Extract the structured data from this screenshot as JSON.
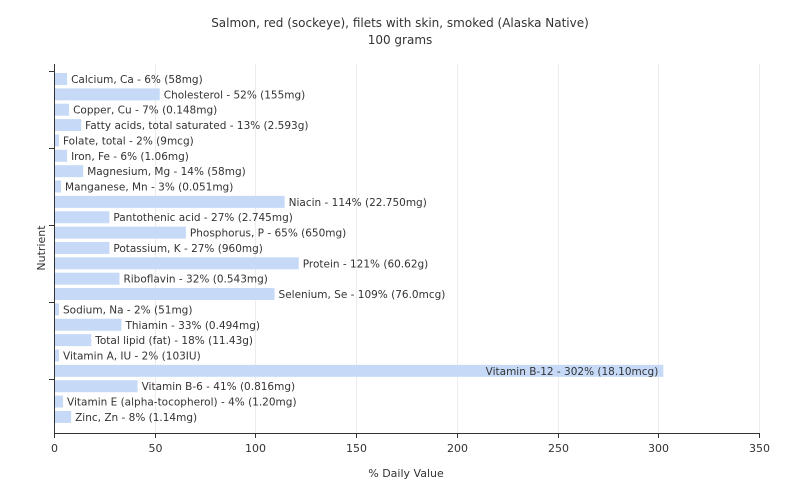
{
  "chart_data": {
    "type": "bar",
    "orientation": "horizontal",
    "title": "Salmon, red (sockeye), filets with skin, smoked (Alaska Native)",
    "subtitle": "100 grams",
    "xlabel": "% Daily Value",
    "ylabel": "Nutrient",
    "xlim": [
      0,
      350
    ],
    "xticks": [
      0,
      50,
      100,
      150,
      200,
      250,
      300,
      350
    ],
    "grid": true,
    "bar_color": "#c6daf8",
    "categories": [
      "Calcium, Ca",
      "Cholesterol",
      "Copper, Cu",
      "Fatty acids, total saturated",
      "Folate, total",
      "Iron, Fe",
      "Magnesium, Mg",
      "Manganese, Mn",
      "Niacin",
      "Pantothenic acid",
      "Phosphorus, P",
      "Potassium, K",
      "Protein",
      "Riboflavin",
      "Selenium, Se",
      "Sodium, Na",
      "Thiamin",
      "Total lipid (fat)",
      "Vitamin A, IU",
      "Vitamin B-12",
      "Vitamin B-6",
      "Vitamin E (alpha-tocopherol)",
      "Zinc, Zn"
    ],
    "values": [
      6,
      52,
      7,
      13,
      2,
      6,
      14,
      3,
      114,
      27,
      65,
      27,
      121,
      32,
      109,
      2,
      33,
      18,
      2,
      302,
      41,
      4,
      8
    ],
    "labels": [
      "Calcium, Ca - 6% (58mg)",
      "Cholesterol - 52% (155mg)",
      "Copper, Cu - 7% (0.148mg)",
      "Fatty acids, total saturated - 13% (2.593g)",
      "Folate, total - 2% (9mcg)",
      "Iron, Fe - 6% (1.06mg)",
      "Magnesium, Mg - 14% (58mg)",
      "Manganese, Mn - 3% (0.051mg)",
      "Niacin - 114% (22.750mg)",
      "Pantothenic acid - 27% (2.745mg)",
      "Phosphorus, P - 65% (650mg)",
      "Potassium, K - 27% (960mg)",
      "Protein - 121% (60.62g)",
      "Riboflavin - 32% (0.543mg)",
      "Selenium, Se - 109% (76.0mcg)",
      "Sodium, Na - 2% (51mg)",
      "Thiamin - 33% (0.494mg)",
      "Total lipid (fat) - 18% (11.43g)",
      "Vitamin A, IU - 2% (103IU)",
      "Vitamin B-12 - 302% (18.10mcg)",
      "Vitamin B-6 - 41% (0.816mg)",
      "Vitamin E (alpha-tocopherol) - 4% (1.20mg)",
      "Zinc, Zn - 8% (1.14mg)"
    ]
  }
}
